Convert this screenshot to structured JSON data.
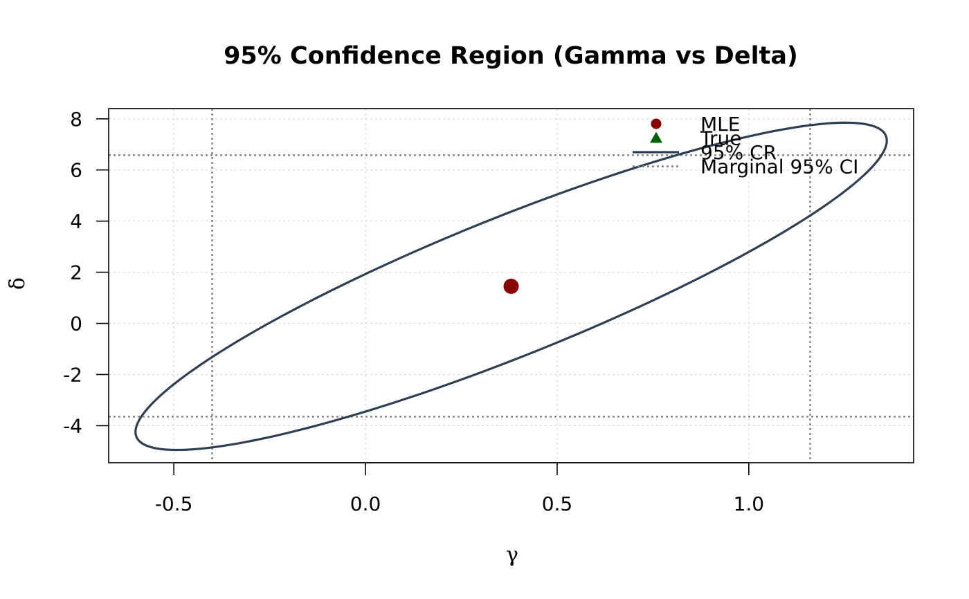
{
  "chart_data": {
    "type": "scatter",
    "title": "95% Confidence Region (Gamma vs Delta)",
    "xlabel": "γ",
    "ylabel": "δ",
    "xlim": [
      -0.67,
      1.43
    ],
    "ylim": [
      -5.45,
      8.4
    ],
    "x_ticks": [
      -0.5,
      0.0,
      0.5,
      1.0
    ],
    "x_tick_labels": [
      "-0.5",
      "0.0",
      "0.5",
      "1.0"
    ],
    "y_ticks": [
      -4,
      -2,
      0,
      2,
      4,
      6,
      8
    ],
    "y_tick_labels": [
      "-4",
      "-2",
      "0",
      "2",
      "4",
      "6",
      "8"
    ],
    "grid": true,
    "legend_position": "top-right",
    "mle": {
      "x": 0.38,
      "y": 1.45
    },
    "confidence_region": {
      "center": [
        0.38,
        1.45
      ],
      "x_halfwidth": 0.98,
      "y_halfwidth": 6.4,
      "correlation": 0.89
    },
    "marginal_ci": {
      "gamma": [
        -0.4,
        1.16
      ],
      "delta": [
        -3.65,
        6.58
      ]
    },
    "legend": [
      {
        "label": "MLE",
        "marker": "circle",
        "color": "#8B0000"
      },
      {
        "label": "True",
        "marker": "triangle",
        "color": "#006400"
      },
      {
        "label": "95% CR",
        "marker": "line",
        "color": "#2E3F55"
      },
      {
        "label": "Marginal 95% CI",
        "marker": "dotted-line",
        "color": "#808080"
      }
    ],
    "colors": {
      "mle": "#8B0000",
      "true": "#006400",
      "region": "#2E3F55",
      "marginal": "#808080",
      "grid": "#D9D9D9"
    }
  }
}
